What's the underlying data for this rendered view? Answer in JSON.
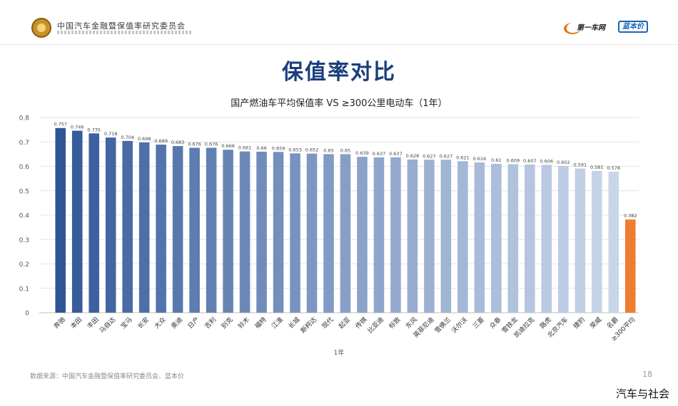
{
  "header": {
    "org_name": "中国汽车金融暨保值率研究委员会",
    "brand1": "第一车网",
    "brand2": "蓝本价"
  },
  "slide_title": "保值率对比",
  "footer": {
    "source": "数据来源：中国汽车金融暨保值率研究委员会、蓝本价",
    "page_number": "18",
    "watermark": "汽车与社会"
  },
  "colors": {
    "title": "#1a3f7c",
    "highlight": "#ed7d31",
    "bar_gradient_start": "#2f5597",
    "bar_gradient_end": "#c9d6ea"
  },
  "chart_data": {
    "type": "bar",
    "title": "国产燃油车平均保值率 VS ≥300公里电动车（1年）",
    "xlabel": "1年",
    "ylabel": "",
    "ylim": [
      0,
      0.8
    ],
    "yticks": [
      "0",
      "0.1",
      "0.2",
      "0.3",
      "0.4",
      "0.5",
      "0.6",
      "0.7",
      "0.8"
    ],
    "grid": true,
    "legend": "none",
    "categories": [
      "奔驰",
      "本田",
      "丰田",
      "马自达",
      "宝马",
      "长安",
      "大众",
      "奥迪",
      "日产",
      "吉利",
      "别克",
      "铃木",
      "福特",
      "江淮",
      "长城",
      "斯柯达",
      "现代",
      "起亚",
      "传祺",
      "比亚迪",
      "标致",
      "东风",
      "英菲尼迪",
      "雪佛兰",
      "沃尔沃",
      "三菱",
      "众泰",
      "雪铁龙",
      "凯迪拉克",
      "路虎",
      "北京汽车",
      "捷豹",
      "荣威",
      "名爵",
      "≥300平均"
    ],
    "values": [
      0.757,
      0.746,
      0.735,
      0.718,
      0.704,
      0.698,
      0.689,
      0.683,
      0.676,
      0.676,
      0.668,
      0.661,
      0.66,
      0.659,
      0.653,
      0.652,
      0.65,
      0.65,
      0.639,
      0.637,
      0.637,
      0.628,
      0.627,
      0.627,
      0.621,
      0.616,
      0.61,
      0.609,
      0.607,
      0.606,
      0.602,
      0.591,
      0.581,
      0.578,
      0.382
    ],
    "data_labels": [
      "0.757",
      "0.746",
      "0.735",
      "0.718",
      "0.704",
      "0.698",
      "0.689",
      "0.683",
      "0.676",
      "0.676",
      "0.668",
      "0.661",
      "0.66",
      "0.659",
      "0.653",
      "0.652",
      "0.65",
      "0.65",
      "0.639",
      "0.637",
      "0.637",
      "0.628",
      "0.627",
      "0.627",
      "0.621",
      "0.616",
      "0.61",
      "0.609",
      "0.607",
      "0.606",
      "0.602",
      "0.591",
      "0.581",
      "0.578",
      "0.382"
    ],
    "highlight_index": 34
  }
}
